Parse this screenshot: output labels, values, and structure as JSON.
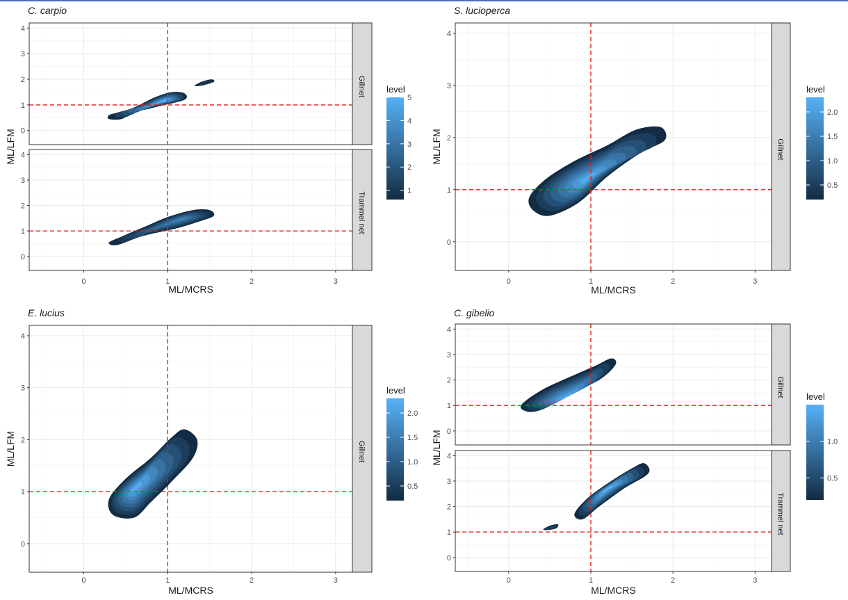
{
  "colors": {
    "density_low": "#132B43",
    "density_high": "#56B1F7",
    "reference_line": "#e0201b",
    "strip_fill": "#d9d9d9",
    "gridline": "#ebebeb",
    "panel_border": "#333333"
  },
  "chart_data": [
    {
      "type": "contour",
      "title": "C. carpio",
      "xlabel": "ML/MCRS",
      "ylabel": "ML/LFM",
      "xlim": [
        -0.65,
        3.2
      ],
      "ylim": [
        -0.55,
        4.2
      ],
      "x_ticks": [
        "0",
        "1",
        "2",
        "3"
      ],
      "y_ticks": [
        "0",
        "1",
        "2",
        "3",
        "4"
      ],
      "reference_lines": {
        "x": 1,
        "y": 1
      },
      "grid": true,
      "legend_position": "right",
      "legend": {
        "title": "level",
        "range": [
          0.6,
          5
        ],
        "ticks": [
          "1",
          "2",
          "3",
          "4",
          "5"
        ]
      },
      "facets": [
        {
          "label": "Gillnet",
          "regions": [
            {
              "path": [
                [
                  0.3,
                  0.6
                ],
                [
                  0.4,
                  0.7
                ],
                [
                  0.6,
                  0.9
                ],
                [
                  0.85,
                  1.3
                ],
                [
                  1.05,
                  1.5
                ],
                [
                  1.2,
                  1.45
                ],
                [
                  1.2,
                  1.2
                ],
                [
                  0.9,
                  0.95
                ],
                [
                  0.6,
                  0.7
                ],
                [
                  0.45,
                  0.45
                ],
                [
                  0.3,
                  0.45
                ]
              ],
              "core": {
                "x": 0.95,
                "y": 1.15,
                "level": 5
              }
            },
            {
              "path": [
                [
                  1.32,
                  1.75
                ],
                [
                  1.4,
                  1.9
                ],
                [
                  1.52,
                  2.0
                ],
                [
                  1.55,
                  1.9
                ],
                [
                  1.4,
                  1.75
                ]
              ],
              "core": {
                "x": 1.44,
                "y": 1.87,
                "level": 1.2
              }
            }
          ]
        },
        {
          "label": "Trammel net",
          "regions": [
            {
              "path": [
                [
                  0.3,
                  0.55
                ],
                [
                  0.5,
                  0.85
                ],
                [
                  0.75,
                  1.2
                ],
                [
                  1.0,
                  1.55
                ],
                [
                  1.3,
                  1.82
                ],
                [
                  1.5,
                  1.82
                ],
                [
                  1.55,
                  1.6
                ],
                [
                  1.4,
                  1.4
                ],
                [
                  1.1,
                  1.1
                ],
                [
                  0.7,
                  0.8
                ],
                [
                  0.4,
                  0.45
                ]
              ],
              "core": {
                "x": 1.15,
                "y": 1.45,
                "level": 3.5
              }
            }
          ]
        }
      ]
    },
    {
      "type": "contour",
      "title": "S. lucioperca",
      "xlabel": "ML/MCRS",
      "ylabel": "ML/LFM",
      "xlim": [
        -0.65,
        3.2
      ],
      "ylim": [
        -0.55,
        4.2
      ],
      "x_ticks": [
        "0",
        "1",
        "2",
        "3"
      ],
      "y_ticks": [
        "0",
        "1",
        "2",
        "3",
        "4"
      ],
      "reference_lines": {
        "x": 1,
        "y": 1
      },
      "grid": true,
      "legend_position": "right",
      "legend": {
        "title": "level",
        "range": [
          0.2,
          2.3
        ],
        "ticks": [
          "0.5",
          "1.0",
          "1.5",
          "2.0"
        ]
      },
      "facets": [
        {
          "label": "Gillnet",
          "regions": [
            {
              "path": [
                [
                  0.25,
                  0.85
                ],
                [
                  0.45,
                  1.2
                ],
                [
                  0.8,
                  1.55
                ],
                [
                  1.2,
                  1.85
                ],
                [
                  1.55,
                  2.15
                ],
                [
                  1.85,
                  2.2
                ],
                [
                  1.9,
                  1.95
                ],
                [
                  1.6,
                  1.7
                ],
                [
                  1.2,
                  1.25
                ],
                [
                  0.85,
                  0.75
                ],
                [
                  0.5,
                  0.5
                ],
                [
                  0.3,
                  0.6
                ]
              ],
              "core": {
                "x": 0.95,
                "y": 1.2,
                "level": 2.2
              }
            }
          ]
        }
      ]
    },
    {
      "type": "contour",
      "title": "E. lucius",
      "xlabel": "ML/MCRS",
      "ylabel": "ML/LFM",
      "xlim": [
        -0.65,
        3.2
      ],
      "ylim": [
        -0.55,
        4.2
      ],
      "x_ticks": [
        "0",
        "1",
        "2",
        "3"
      ],
      "y_ticks": [
        "0",
        "1",
        "2",
        "3",
        "4"
      ],
      "reference_lines": {
        "x": 1,
        "y": 1
      },
      "grid": true,
      "legend_position": "right",
      "legend": {
        "title": "level",
        "range": [
          0.2,
          2.3
        ],
        "ticks": [
          "0.5",
          "1.0",
          "1.5",
          "2.0"
        ]
      },
      "facets": [
        {
          "label": "Gillnet",
          "regions": [
            {
              "path": [
                [
                  0.3,
                  0.85
                ],
                [
                  0.5,
                  1.25
                ],
                [
                  0.8,
                  1.65
                ],
                [
                  1.05,
                  2.05
                ],
                [
                  1.2,
                  2.2
                ],
                [
                  1.35,
                  2.0
                ],
                [
                  1.3,
                  1.65
                ],
                [
                  1.05,
                  1.2
                ],
                [
                  0.8,
                  0.8
                ],
                [
                  0.6,
                  0.5
                ],
                [
                  0.35,
                  0.55
                ]
              ],
              "core": {
                "x": 0.6,
                "y": 1.05,
                "level": 2.2
              }
            }
          ]
        }
      ]
    },
    {
      "type": "contour",
      "title": "C. gibelio",
      "xlabel": "ML/MCRS",
      "ylabel": "ML/LFM",
      "xlim": [
        -0.65,
        3.2
      ],
      "ylim": [
        -0.55,
        4.2
      ],
      "x_ticks": [
        "0",
        "1",
        "2",
        "3"
      ],
      "y_ticks": [
        "0",
        "1",
        "2",
        "3",
        "4"
      ],
      "reference_lines": {
        "x": 1,
        "y": 1
      },
      "grid": true,
      "legend_position": "right",
      "legend": {
        "title": "level",
        "range": [
          0.2,
          1.5
        ],
        "ticks": [
          "0.5",
          "1.0"
        ]
      },
      "facets": [
        {
          "label": "Gillnet",
          "regions": [
            {
              "path": [
                [
                  0.15,
                  1.0
                ],
                [
                  0.4,
                  1.6
                ],
                [
                  0.8,
                  2.2
                ],
                [
                  1.05,
                  2.55
                ],
                [
                  1.25,
                  2.85
                ],
                [
                  1.3,
                  2.6
                ],
                [
                  1.1,
                  2.0
                ],
                [
                  0.75,
                  1.5
                ],
                [
                  0.45,
                  0.9
                ],
                [
                  0.25,
                  0.75
                ]
              ],
              "core": {
                "x": 0.7,
                "y": 1.3,
                "level": 1.45
              }
            }
          ]
        },
        {
          "label": "Trammel net",
          "regions": [
            {
              "path": [
                [
                  0.8,
                  1.7
                ],
                [
                  0.95,
                  2.3
                ],
                [
                  1.2,
                  2.9
                ],
                [
                  1.5,
                  3.5
                ],
                [
                  1.65,
                  3.7
                ],
                [
                  1.7,
                  3.3
                ],
                [
                  1.4,
                  2.7
                ],
                [
                  1.1,
                  2.0
                ],
                [
                  0.9,
                  1.5
                ]
              ],
              "core": {
                "x": 1.2,
                "y": 2.7,
                "level": 1.5
              }
            },
            {
              "path": [
                [
                  0.42,
                  1.1
                ],
                [
                  0.5,
                  1.25
                ],
                [
                  0.6,
                  1.3
                ],
                [
                  0.58,
                  1.15
                ],
                [
                  0.48,
                  1.08
                ]
              ],
              "core": {
                "x": 0.52,
                "y": 1.18,
                "level": 0.5
              }
            }
          ]
        }
      ]
    }
  ]
}
